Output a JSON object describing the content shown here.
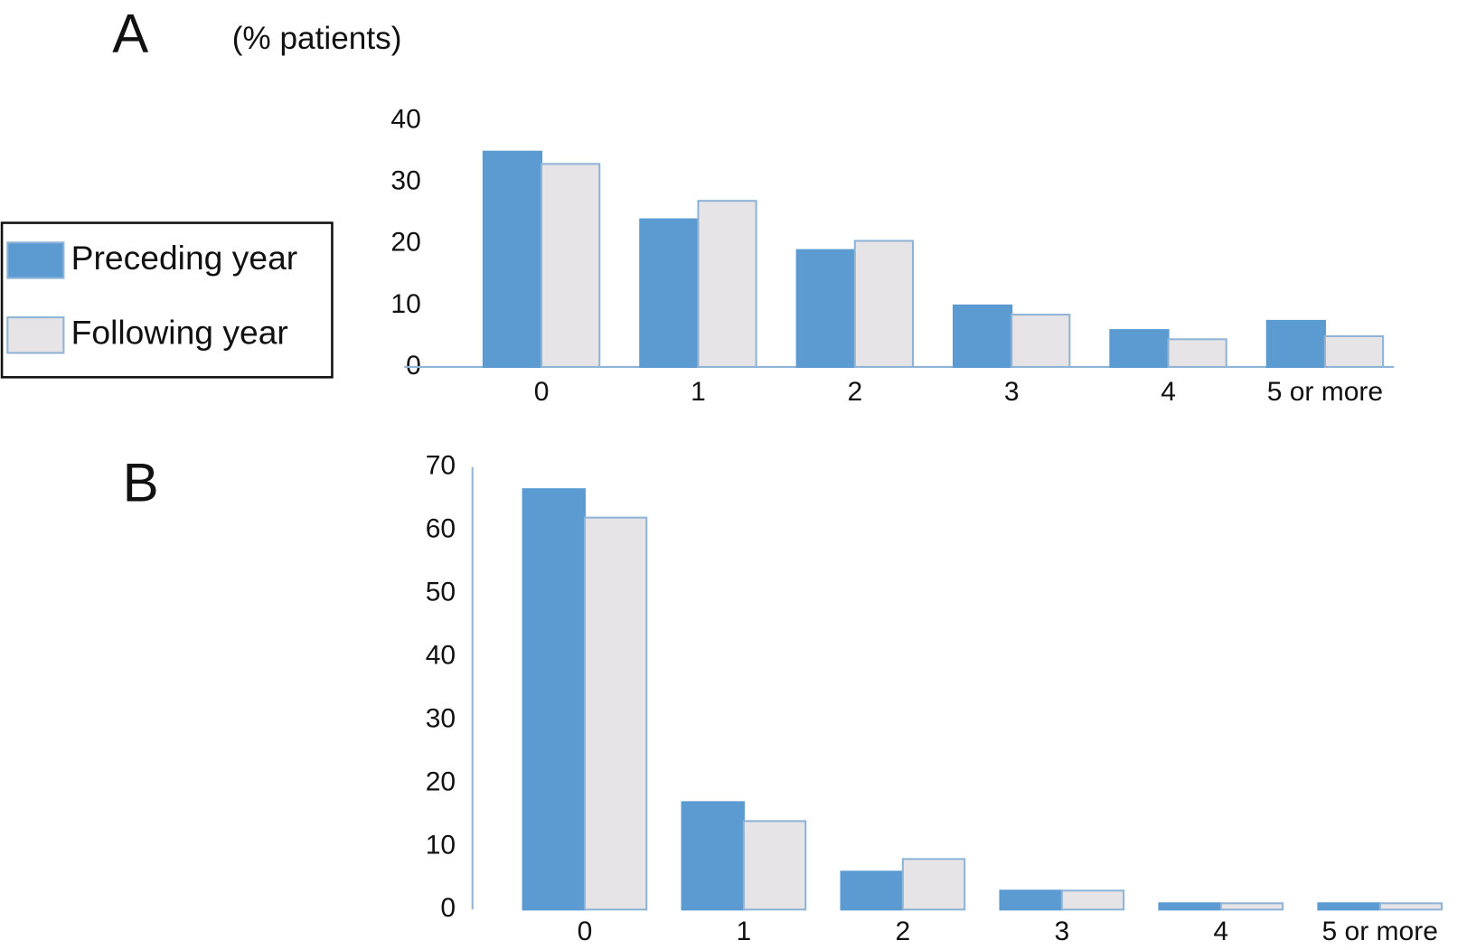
{
  "chart_data": [
    {
      "type": "bar",
      "title": "A",
      "y_label": "(% patients)",
      "categories": [
        "0",
        "1",
        "2",
        "3",
        "4",
        "5 or more"
      ],
      "series": [
        {
          "name": "Preceding year",
          "color": "#5b9bd1",
          "values": [
            35,
            24,
            19,
            10,
            6,
            7.5
          ]
        },
        {
          "name": "Following year",
          "color": "#e6e4e6",
          "values": [
            33,
            27,
            20.5,
            8.5,
            4.5,
            5
          ]
        }
      ],
      "ylim": [
        0,
        40
      ],
      "yticks": [
        0,
        10,
        20,
        30,
        40
      ],
      "legend": "left",
      "axis_line": "x"
    },
    {
      "type": "bar",
      "title": "B",
      "categories": [
        "0",
        "1",
        "2",
        "3",
        "4",
        "5 or more"
      ],
      "series": [
        {
          "color": "#5b9bd1",
          "values": [
            66.5,
            17,
            6,
            3,
            1,
            1
          ]
        },
        {
          "color": "#e6e4e6",
          "values": [
            62,
            14,
            8,
            3,
            1,
            1
          ]
        }
      ],
      "ylim": [
        0,
        70
      ],
      "yticks": [
        0,
        10,
        20,
        30,
        40,
        50,
        60,
        70
      ],
      "axis_line": "y"
    }
  ]
}
